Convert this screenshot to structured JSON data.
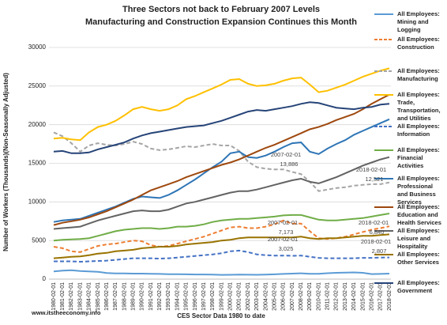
{
  "chart_data": {
    "type": "line",
    "title": "Three Sectors not back to February 2007 Levels",
    "subtitle": "Manufacturing and Construction Expansion Continues this Month",
    "x_label": "CES Sector Data 1980 to date",
    "y_label": "Number of Workers (Thousands)(Non-Seasonally Adjusted)",
    "source": "www.itstheeconomy.info",
    "categories": [
      "1980-02-01",
      "1981-02-01",
      "1982-02-01",
      "1983-02-01",
      "1984-02-01",
      "1985-02-01",
      "1986-02-01",
      "1987-02-01",
      "1988-02-01",
      "1989-02-01",
      "1990-02-01",
      "1991-02-01",
      "1992-02-01",
      "1993-02-01",
      "1994-02-01",
      "1995-02-01",
      "1996-02-01",
      "1997-02-01",
      "1998-02-01",
      "1999-02-01",
      "2000-02-01",
      "2001-02-01",
      "2002-02-01",
      "2003-02-01",
      "2004-02-01",
      "2005-02-01",
      "2006-02-01",
      "2007-02-01",
      "2008-02-01",
      "2009-02-01",
      "2010-02-01",
      "2011-02-01",
      "2012-02-01",
      "2013-02-01",
      "2014-02-01",
      "2015-02-01",
      "2016-02-01",
      "2017-02-01",
      "2018-02-01"
    ],
    "ylim": [
      0,
      30000
    ],
    "yticks": [
      0,
      5000,
      10000,
      15000,
      20000,
      25000,
      30000
    ],
    "grid": true,
    "series": [
      {
        "name": "All Employees: Mining and Logging",
        "color": "#5b9bd5",
        "dashed": false,
        "values": [
          1000,
          1100,
          1150,
          1050,
          1000,
          950,
          800,
          750,
          750,
          720,
          720,
          700,
          680,
          650,
          630,
          620,
          600,
          600,
          590,
          550,
          560,
          580,
          570,
          560,
          580,
          620,
          680,
          720,
          760,
          700,
          700,
          770,
          820,
          840,
          870,
          820,
          660,
          680,
          720
        ]
      },
      {
        "name": "All Employees: Construction",
        "color": "#ed7d31",
        "dashed": true,
        "values": [
          4200,
          4000,
          3600,
          3500,
          3900,
          4300,
          4500,
          4600,
          4800,
          5000,
          4900,
          4400,
          4200,
          4300,
          4600,
          4900,
          5200,
          5500,
          5900,
          6300,
          6700,
          6800,
          6600,
          6600,
          6800,
          7100,
          7600,
          7173,
          7200,
          6200,
          5300,
          5200,
          5300,
          5500,
          5800,
          6100,
          6400,
          6600,
          6840
        ]
      },
      {
        "name": "All Employees: Manufacturing",
        "color": "#a5a5a5",
        "dashed": true,
        "values": [
          19000,
          18500,
          17600,
          16500,
          17300,
          17600,
          17400,
          17300,
          17500,
          17800,
          17500,
          16900,
          16700,
          16800,
          17000,
          17200,
          17100,
          17300,
          17500,
          17300,
          17300,
          16600,
          15200,
          14500,
          14300,
          14200,
          14200,
          13886,
          13600,
          12600,
          11400,
          11600,
          11800,
          11900,
          12100,
          12200,
          12300,
          12300,
          12521
        ]
      },
      {
        "name": "All Employees: Trade, Transportation, and Utilities",
        "color": "#ffc000",
        "dashed": false,
        "values": [
          18200,
          18300,
          18100,
          18000,
          19000,
          19700,
          20000,
          20500,
          21200,
          22000,
          22300,
          22000,
          21800,
          22000,
          22500,
          23300,
          23700,
          24200,
          24700,
          25200,
          25800,
          25900,
          25300,
          25000,
          25100,
          25300,
          25700,
          26000,
          26100,
          25200,
          24200,
          24400,
          24800,
          25200,
          25700,
          26200,
          26600,
          27000,
          27300
        ]
      },
      {
        "name": "All Employees: Information",
        "color": "#4472c4",
        "dashed": true,
        "values": [
          2300,
          2300,
          2300,
          2250,
          2300,
          2350,
          2400,
          2500,
          2600,
          2700,
          2700,
          2700,
          2650,
          2700,
          2800,
          2900,
          3000,
          3100,
          3200,
          3350,
          3600,
          3700,
          3500,
          3200,
          3100,
          3050,
          3050,
          3025,
          3050,
          2900,
          2750,
          2700,
          2700,
          2700,
          2700,
          2750,
          2750,
          2800,
          2807
        ]
      },
      {
        "name": "All Employees: Financial Activities",
        "color": "#70ad47",
        "dashed": false,
        "values": [
          5000,
          5100,
          5150,
          5200,
          5300,
          5600,
          5900,
          6200,
          6400,
          6500,
          6600,
          6600,
          6500,
          6600,
          6800,
          6800,
          6900,
          7100,
          7400,
          7600,
          7700,
          7800,
          7800,
          7900,
          8000,
          8100,
          8250,
          8300,
          8300,
          8000,
          7700,
          7600,
          7600,
          7700,
          7800,
          7900,
          8100,
          8300,
          8500
        ]
      },
      {
        "name": "All Employees: Professional and Business Services",
        "color": "#2e75b6",
        "dashed": false,
        "values": [
          7400,
          7600,
          7700,
          7800,
          8200,
          8600,
          9000,
          9400,
          9900,
          10400,
          10700,
          10600,
          10500,
          10900,
          11500,
          12200,
          12900,
          13700,
          14500,
          15200,
          16300,
          16500,
          15800,
          15700,
          16000,
          16500,
          17100,
          17600,
          17700,
          16500,
          16200,
          16900,
          17500,
          18000,
          18700,
          19200,
          19700,
          20200,
          20700
        ]
      },
      {
        "name": "All Employees: Education and Health Services",
        "color": "#9e480e",
        "dashed": false,
        "values": [
          7000,
          7300,
          7500,
          7700,
          8000,
          8400,
          8800,
          9300,
          9800,
          10300,
          10900,
          11500,
          11900,
          12300,
          12700,
          13200,
          13600,
          14000,
          14400,
          14800,
          15100,
          15500,
          16000,
          16500,
          17000,
          17400,
          17900,
          18400,
          18900,
          19400,
          19700,
          20100,
          20600,
          21000,
          21400,
          22000,
          22700,
          23300,
          23900
        ]
      },
      {
        "name": "All Employees: Leisure and Hospitality",
        "color": "#636363",
        "dashed": false,
        "values": [
          6500,
          6600,
          6700,
          6800,
          7200,
          7600,
          7900,
          8200,
          8500,
          8800,
          8900,
          8800,
          8800,
          9000,
          9400,
          9800,
          10000,
          10300,
          10600,
          10900,
          11200,
          11400,
          11400,
          11600,
          11900,
          12200,
          12500,
          12800,
          13000,
          12600,
          12400,
          12800,
          13200,
          13700,
          14200,
          14700,
          15100,
          15500,
          15800
        ]
      },
      {
        "name": "All Employees: Other Services",
        "color": "#997300",
        "dashed": false,
        "values": [
          2700,
          2800,
          2900,
          2950,
          3100,
          3300,
          3400,
          3600,
          3700,
          3800,
          4000,
          4100,
          4200,
          4200,
          4300,
          4500,
          4600,
          4700,
          4800,
          5000,
          5100,
          5300,
          5400,
          5400,
          5400,
          5400,
          5400,
          5400,
          5500,
          5300,
          5200,
          5300,
          5300,
          5400,
          5500,
          5600,
          5600,
          5700,
          5800
        ]
      },
      {
        "name": "All Employees: Government",
        "color": "#264478",
        "dashed": false,
        "values": [
          16500,
          16600,
          16300,
          16300,
          16400,
          16800,
          17100,
          17400,
          17700,
          18200,
          18600,
          18900,
          19100,
          19300,
          19500,
          19700,
          19800,
          19900,
          20200,
          20500,
          20900,
          21300,
          21700,
          21900,
          21800,
          22000,
          22200,
          22400,
          22700,
          22900,
          22800,
          22500,
          22200,
          22100,
          22000,
          22200,
          22300,
          22600,
          22700
        ]
      }
    ],
    "annotations": [
      {
        "lines": [
          "2007-02-01",
          "13,886"
        ]
      },
      {
        "lines": [
          "2007-02-01",
          "7,173"
        ]
      },
      {
        "lines": [
          "2007-02-01",
          "3,025"
        ]
      },
      {
        "lines": [
          "2018-02-01",
          "12,521"
        ]
      },
      {
        "lines": [
          "2018-02-01",
          "6,840"
        ]
      },
      {
        "lines": [
          "2018-02-01",
          "2,807"
        ]
      }
    ]
  }
}
